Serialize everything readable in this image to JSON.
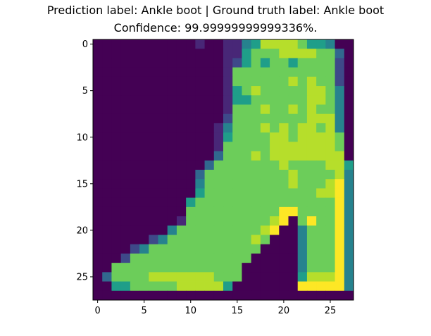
{
  "chart_data": {
    "type": "heatmap",
    "title": "Prediction label: Ankle boot  |  Ground truth label: Ankle boot",
    "subtitle": "Confidence: 99.99999999999336%.",
    "colormap": "viridis",
    "grid": false,
    "x_ticks": [
      0,
      5,
      10,
      15,
      20,
      25
    ],
    "y_ticks": [
      0,
      5,
      10,
      15,
      20,
      25
    ],
    "xlim": [
      -0.5,
      27.5
    ],
    "ylim": [
      27.5,
      -0.5
    ],
    "rows": 28,
    "cols": 28,
    "intensity_scale": "0 = dark purple, 9 = yellow",
    "image": [
      "0000000000010011457777655400",
      "0000000000000011566677776630",
      "0000000000000012565665666620",
      "0000000000000016666666666620",
      "0000000000000016666667676620",
      "0000000000000015676666677640",
      "0000000000000015566666677640",
      "0000000000000016667667676640",
      "0000000000000026666666677740",
      "0000000000000146667676776740",
      "0000000000000156666776777760",
      "0000000000000166666777777760",
      "0000000000000366676777777770",
      "0000000000003666666676666775",
      "0000000000036666666667666674",
      "0000000000046666666667666794",
      "0000000000056666666666667794",
      "0000000000566666666666666694",
      "0000000000666666666688666694",
      "0000000001666666666780686694",
      "0000000046666666667800466694",
      "0000002466666666676000466694",
      "0000246666666666660000466694",
      "0002666666666666600000466694",
      "0066666666666666000000466694",
      "0366667777777666000000577794",
      "0055666667777750000000888884",
      "0000000000000000000000000000"
    ]
  }
}
